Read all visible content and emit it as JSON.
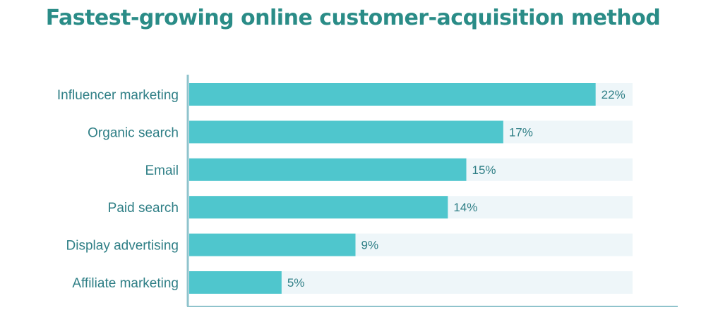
{
  "chart_data": {
    "type": "bar",
    "orientation": "horizontal",
    "title": "Fastest-growing online customer-acquisition method",
    "categories": [
      "Influencer marketing",
      "Organic search",
      "Email",
      "Paid search",
      "Display advertising",
      "Affiliate marketing"
    ],
    "values": [
      22,
      17,
      15,
      14,
      9,
      5
    ],
    "value_labels": [
      "22%",
      "17%",
      "15%",
      "14%",
      "9%",
      "5%"
    ],
    "unit": "%",
    "xlim": [
      0,
      24
    ],
    "grid": false,
    "legend": "none"
  },
  "colors": {
    "title": "#2a8c87",
    "bar": "#4fc6cd",
    "track": "#eef6f9",
    "axis": "#8fc3cc",
    "label": "#2f7f86"
  }
}
